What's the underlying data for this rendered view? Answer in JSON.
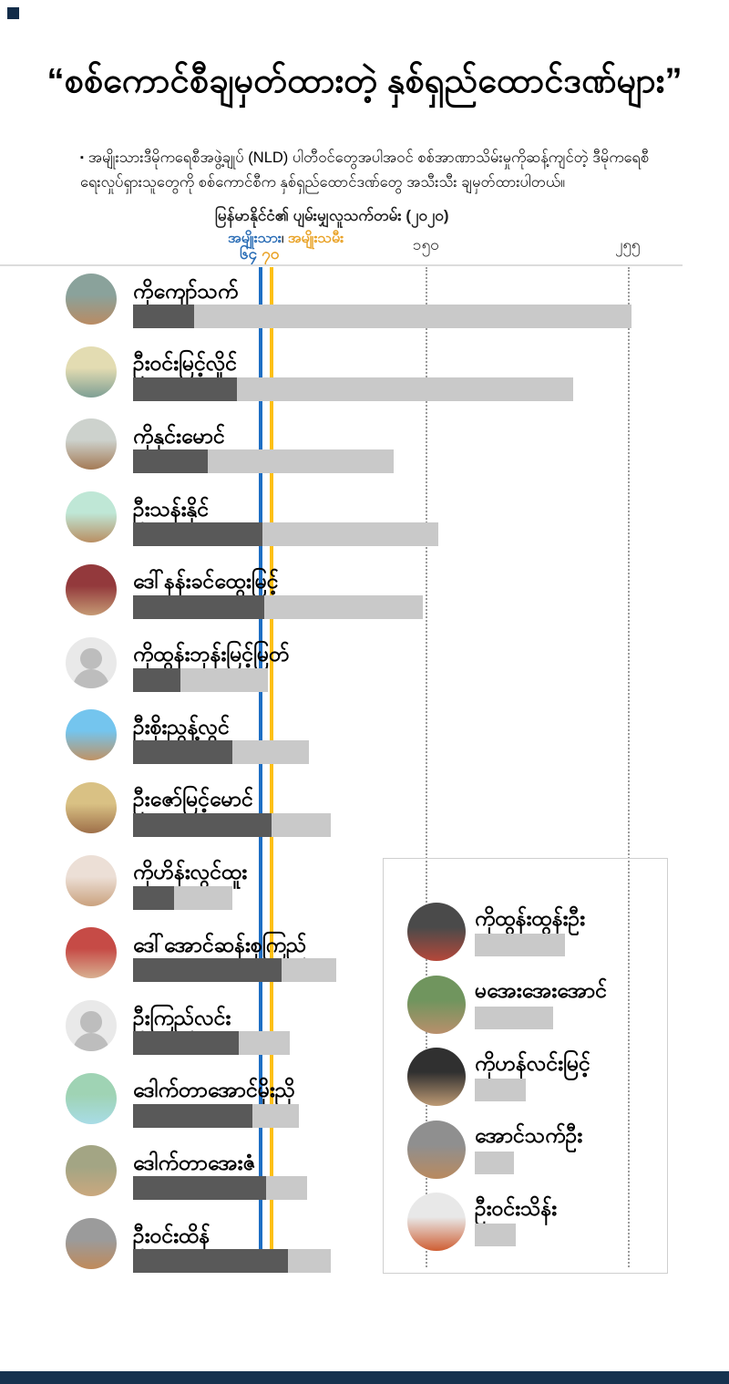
{
  "header": {
    "title": "“စစ်ကောင်စီချမှတ်ထားတဲ့ နှစ်ရှည်ထောင်ဒဏ်များ”",
    "bullet": "▪",
    "description": "အမျိုးသားဒီမိုကရေစီအဖွဲ့ချုပ် (NLD) ပါတီဝင်တွေအပါအဝင် စစ်အာဏာသိမ်းမှုကိုဆန့်ကျင်တဲ့ ဒီမိုကရေစီရေးလှုပ်ရှားသူတွေကို စစ်ကောင်စီက နှစ်ရှည်ထောင်ဒဏ်တွေ အသီးသီး ချမှတ်ထားပါတယ်။"
  },
  "chart_header": {
    "title": "မြန်မာနိုင်ငံ၏ ပျမ်းမျှလူသက်တမ်း (၂၀၂၀)",
    "legend_male": "အမျိုးသား",
    "legend_separator": "၊",
    "legend_female": "အမျိုးသမီး",
    "male_value_label": "၆၄",
    "female_value_label": "၇၀",
    "tick_150": "၁၅၀",
    "tick_255": "၂၅၅"
  },
  "colors": {
    "male_line": "#1e6fc4",
    "female_line": "#fdc013",
    "male_text": "#2a6db6",
    "female_text": "#e9a226",
    "bar_dark": "#595959",
    "bar_light": "#c9c9c9",
    "grid_dotted": "#9b9b9b",
    "axis_line": "#dcdcdc",
    "footer_bar": "#16324f"
  },
  "chart_data": {
    "type": "bar",
    "orientation": "horizontal-stacked",
    "unit": "years",
    "title": "မြန်မာနိုင်ငံ၏ ပျမ်းမျှလူသက်တမ်း (၂၀၂၀)",
    "life_expectancy": {
      "male": 64,
      "female": 70
    },
    "axis": {
      "min": 0,
      "max": 280,
      "dotted_gridlines": [
        150,
        255
      ]
    },
    "legend": [
      "အမျိုးသား",
      "အမျိုးသမီး"
    ],
    "series_meaning": {
      "dark": "current age",
      "light": "age plus prison sentence"
    },
    "people": [
      {
        "name": "ကိုကျော်သက်",
        "age": 31,
        "release_age": 255,
        "placeholder": false,
        "c1": "#8aa29b",
        "c2": "#b98b63"
      },
      {
        "name": "ဦးဝင်းမြင့်လှိုင်",
        "age": 53,
        "release_age": 225,
        "placeholder": false,
        "c1": "#e3dcb2",
        "c2": "#7e9f94"
      },
      {
        "name": "ကိုနှင်းမောင်",
        "age": 38,
        "release_age": 133,
        "placeholder": false,
        "c1": "#cdd2cd",
        "c2": "#a47a55"
      },
      {
        "name": "ဦးသန်းနိုင်",
        "age": 66,
        "release_age": 156,
        "placeholder": false,
        "c1": "#bfe7d6",
        "c2": "#b98e62"
      },
      {
        "name": "ဒေါ်နန်းခင်ထွေးမြင့်",
        "age": 67,
        "release_age": 148,
        "placeholder": false,
        "c1": "#93393c",
        "c2": "#c59a74"
      },
      {
        "name": "ကိုထွန်းဘုန်းမြင့်မြတ်",
        "age": 24,
        "release_age": 69,
        "placeholder": true,
        "c1": "#e9e9e9",
        "c2": "#bdbdbd"
      },
      {
        "name": "ဦးစိုးညွန့်လွင်",
        "age": 51,
        "release_age": 90,
        "placeholder": false,
        "c1": "#74c5ee",
        "c2": "#c09264"
      },
      {
        "name": "ဦးဇော်မြင့်မောင်",
        "age": 71,
        "release_age": 101,
        "placeholder": false,
        "c1": "#d9c184",
        "c2": "#9e6f49"
      },
      {
        "name": "ကိုဟိန်းလွင်ထူး",
        "age": 21,
        "release_age": 51,
        "placeholder": false,
        "c1": "#ecdfd6",
        "c2": "#caa27e"
      },
      {
        "name": "ဒေါ်အောင်ဆန်းစုကြည်",
        "age": 76,
        "release_age": 104,
        "placeholder": false,
        "c1": "#c64b46",
        "c2": "#d8b091"
      },
      {
        "name": "ဦးကြည်လင်း",
        "age": 54,
        "release_age": 80,
        "placeholder": true,
        "c1": "#e9e9e9",
        "c2": "#bdbdbd"
      },
      {
        "name": "ဒေါက်တာအောင်မိုးညို",
        "age": 61,
        "release_age": 85,
        "placeholder": false,
        "c1": "#9fd3b4",
        "c2": "#a8dce6"
      },
      {
        "name": "ဒေါက်တာအေးဇံ",
        "age": 68,
        "release_age": 89,
        "placeholder": false,
        "c1": "#a3a584",
        "c2": "#caa87e"
      },
      {
        "name": "ဦးဝင်းထိန်",
        "age": 79,
        "release_age": 101,
        "placeholder": false,
        "c1": "#9b9b9b",
        "c2": "#c08a5a"
      }
    ],
    "inset_people": [
      {
        "name": "ကိုထွန်းထွန်းဦး",
        "sentence_years": 46,
        "c1": "#4a4a4a",
        "c2": "#b5483a"
      },
      {
        "name": "မအေးအေးအောင်",
        "sentence_years": 40,
        "c1": "#70955e",
        "c2": "#b98f6b"
      },
      {
        "name": "ကိုဟန်လင်းမြင့်",
        "sentence_years": 26,
        "c1": "#303030",
        "c2": "#bd9a74"
      },
      {
        "name": "အောင်သက်ဦး",
        "sentence_years": 20,
        "c1": "#8f8f8f",
        "c2": "#b98a5f"
      },
      {
        "name": "ဦးဝင်းသိန်း",
        "sentence_years": 21,
        "c1": "#e8e8e8",
        "c2": "#cf5e33"
      }
    ]
  }
}
